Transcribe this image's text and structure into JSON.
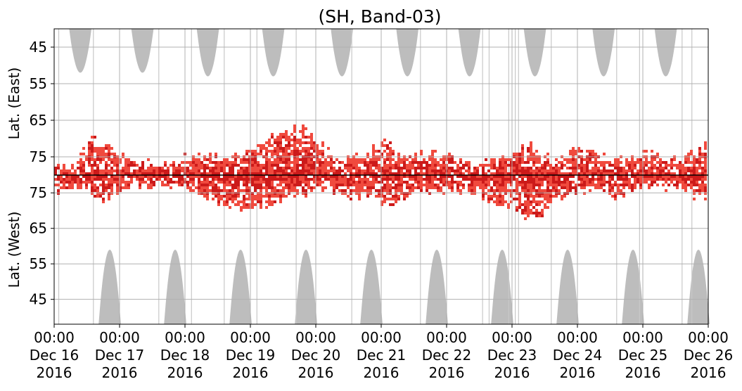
{
  "chart_data": {
    "type": "heatmap",
    "title": "(SH, Band-03)",
    "ylabel_east": "Lat. (East)",
    "ylabel_west": "Lat. (West)",
    "x_range_days": [
      16,
      26
    ],
    "x_ticks": [
      {
        "time": "00:00",
        "date": "Dec 16",
        "year": "2016"
      },
      {
        "time": "00:00",
        "date": "Dec 17",
        "year": "2016"
      },
      {
        "time": "00:00",
        "date": "Dec 18",
        "year": "2016"
      },
      {
        "time": "00:00",
        "date": "Dec 19",
        "year": "2016"
      },
      {
        "time": "00:00",
        "date": "Dec 20",
        "year": "2016"
      },
      {
        "time": "00:00",
        "date": "Dec 21",
        "year": "2016"
      },
      {
        "time": "00:00",
        "date": "Dec 22",
        "year": "2016"
      },
      {
        "time": "00:00",
        "date": "Dec 23",
        "year": "2016"
      },
      {
        "time": "00:00",
        "date": "Dec 24",
        "year": "2016"
      },
      {
        "time": "00:00",
        "date": "Dec 25",
        "year": "2016"
      },
      {
        "time": "00:00",
        "date": "Dec 26",
        "year": "2016"
      }
    ],
    "y_ticks_east": [
      "45",
      "55",
      "65",
      "75"
    ],
    "y_ticks_west": [
      "75",
      "65",
      "55",
      "45"
    ],
    "y_tick_values_east": [
      45,
      55,
      65,
      75
    ],
    "y_tick_values_west": [
      75,
      65,
      55,
      45
    ],
    "grid": true,
    "colors": {
      "strong": "#cc1a1a",
      "weak": "#f04a3e",
      "no_data": "#bdbdbd",
      "grid": "#b0b0b0",
      "divider": "#000000"
    },
    "east_no_data_regions": [
      {
        "center_day": 16.4,
        "min_lat": 52
      },
      {
        "center_day": 17.35,
        "min_lat": 52
      },
      {
        "center_day": 18.35,
        "min_lat": 53
      },
      {
        "center_day": 19.35,
        "min_lat": 53
      },
      {
        "center_day": 20.4,
        "min_lat": 53
      },
      {
        "center_day": 21.4,
        "min_lat": 53
      },
      {
        "center_day": 22.35,
        "min_lat": 53
      },
      {
        "center_day": 23.35,
        "min_lat": 53
      },
      {
        "center_day": 24.4,
        "min_lat": 53
      },
      {
        "center_day": 25.35,
        "min_lat": 53
      }
    ],
    "west_no_data_regions": [
      {
        "center_day": 16.85,
        "min_lat": 59
      },
      {
        "center_day": 17.85,
        "min_lat": 59
      },
      {
        "center_day": 18.85,
        "min_lat": 59
      },
      {
        "center_day": 19.85,
        "min_lat": 59
      },
      {
        "center_day": 20.85,
        "min_lat": 59
      },
      {
        "center_day": 21.85,
        "min_lat": 59
      },
      {
        "center_day": 22.85,
        "min_lat": 59
      },
      {
        "center_day": 23.85,
        "min_lat": 59
      },
      {
        "center_day": 24.85,
        "min_lat": 59
      },
      {
        "center_day": 25.85,
        "min_lat": 59
      }
    ],
    "no_data_vertical_lines_days": [
      16.07,
      16.6,
      17.6,
      18.1,
      18.6,
      19.1,
      19.7,
      20.55,
      21.6,
      22.55,
      22.65,
      22.95,
      23.05,
      23.1,
      23.6,
      24.6,
      24.95,
      25.6,
      25.75
    ],
    "east_profile": [
      {
        "day": 16.0,
        "lat": 77
      },
      {
        "day": 16.3,
        "lat": 77
      },
      {
        "day": 16.55,
        "lat": 70
      },
      {
        "day": 16.8,
        "lat": 72
      },
      {
        "day": 17.0,
        "lat": 74
      },
      {
        "day": 17.4,
        "lat": 76
      },
      {
        "day": 17.8,
        "lat": 77
      },
      {
        "day": 18.0,
        "lat": 75
      },
      {
        "day": 18.4,
        "lat": 74
      },
      {
        "day": 18.7,
        "lat": 75
      },
      {
        "day": 19.0,
        "lat": 72
      },
      {
        "day": 19.3,
        "lat": 69
      },
      {
        "day": 19.5,
        "lat": 68
      },
      {
        "day": 19.8,
        "lat": 66
      },
      {
        "day": 20.1,
        "lat": 72
      },
      {
        "day": 20.5,
        "lat": 75
      },
      {
        "day": 20.8,
        "lat": 73
      },
      {
        "day": 21.0,
        "lat": 70
      },
      {
        "day": 21.3,
        "lat": 75
      },
      {
        "day": 21.6,
        "lat": 74
      },
      {
        "day": 22.0,
        "lat": 74
      },
      {
        "day": 22.4,
        "lat": 77
      },
      {
        "day": 22.7,
        "lat": 76
      },
      {
        "day": 23.0,
        "lat": 73
      },
      {
        "day": 23.3,
        "lat": 72
      },
      {
        "day": 23.6,
        "lat": 76
      },
      {
        "day": 23.9,
        "lat": 73
      },
      {
        "day": 24.3,
        "lat": 74
      },
      {
        "day": 24.6,
        "lat": 76
      },
      {
        "day": 24.9,
        "lat": 74
      },
      {
        "day": 25.2,
        "lat": 73
      },
      {
        "day": 25.5,
        "lat": 76
      },
      {
        "day": 25.8,
        "lat": 73
      },
      {
        "day": 26.0,
        "lat": 70
      }
    ],
    "west_profile": [
      {
        "day": 16.0,
        "lat": 75
      },
      {
        "day": 16.5,
        "lat": 76
      },
      {
        "day": 16.7,
        "lat": 73
      },
      {
        "day": 17.0,
        "lat": 76
      },
      {
        "day": 17.5,
        "lat": 77
      },
      {
        "day": 18.0,
        "lat": 76
      },
      {
        "day": 18.4,
        "lat": 73
      },
      {
        "day": 18.6,
        "lat": 71
      },
      {
        "day": 18.9,
        "lat": 70
      },
      {
        "day": 19.1,
        "lat": 70
      },
      {
        "day": 19.4,
        "lat": 73
      },
      {
        "day": 19.9,
        "lat": 75
      },
      {
        "day": 20.2,
        "lat": 76
      },
      {
        "day": 20.5,
        "lat": 73
      },
      {
        "day": 20.8,
        "lat": 74
      },
      {
        "day": 21.0,
        "lat": 72
      },
      {
        "day": 21.2,
        "lat": 71
      },
      {
        "day": 21.5,
        "lat": 75
      },
      {
        "day": 21.9,
        "lat": 75
      },
      {
        "day": 22.3,
        "lat": 75
      },
      {
        "day": 22.6,
        "lat": 73
      },
      {
        "day": 22.9,
        "lat": 71
      },
      {
        "day": 23.2,
        "lat": 68
      },
      {
        "day": 23.4,
        "lat": 67
      },
      {
        "day": 23.7,
        "lat": 74
      },
      {
        "day": 24.0,
        "lat": 75
      },
      {
        "day": 24.3,
        "lat": 76
      },
      {
        "day": 24.6,
        "lat": 73
      },
      {
        "day": 24.9,
        "lat": 76
      },
      {
        "day": 25.3,
        "lat": 76
      },
      {
        "day": 25.6,
        "lat": 75
      },
      {
        "day": 26.0,
        "lat": 72
      }
    ]
  }
}
